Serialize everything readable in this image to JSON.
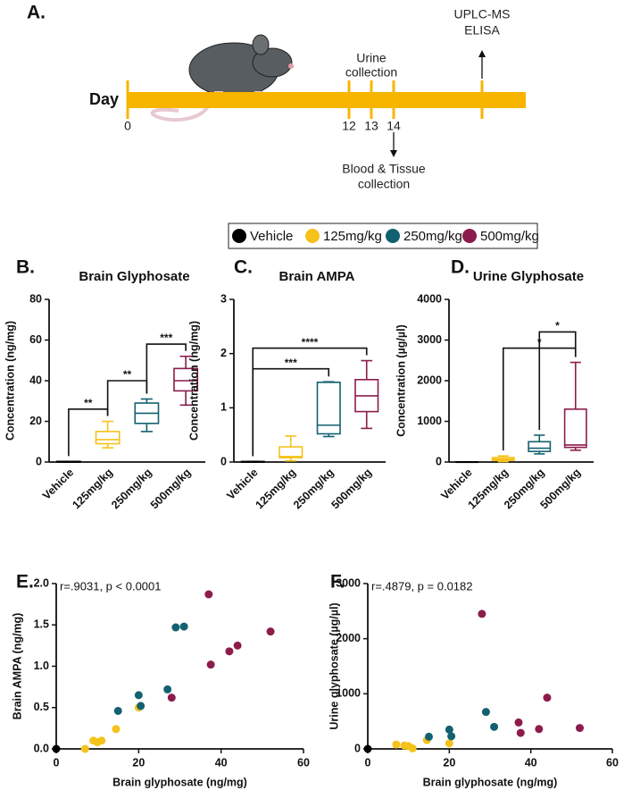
{
  "timeline": {
    "panel": "A.",
    "label": "Day",
    "days": [
      "0",
      "12",
      "13",
      "14"
    ],
    "urine": [
      "Urine",
      "collection"
    ],
    "analysis": [
      "UPLC-MS",
      "ELISA"
    ],
    "tissue": [
      "Blood & Tissue",
      "collection"
    ]
  },
  "legend": [
    {
      "name": "Vehicle",
      "color": "#000000"
    },
    {
      "name": "125mg/kg",
      "color": "#f5c21b"
    },
    {
      "name": "250mg/kg",
      "color": "#136170"
    },
    {
      "name": "500mg/kg",
      "color": "#8c1c4c"
    }
  ],
  "chart_data": [
    {
      "type": "box",
      "panel": "B.",
      "title": "Brain Glyphosate",
      "ylabel": "Concentration (ng/mg)",
      "categories": [
        "Vehicle",
        "125mg/kg",
        "250mg/kg",
        "500mg/kg"
      ],
      "colors": [
        "#000000",
        "#f5c21b",
        "#136170",
        "#8c1c4c"
      ],
      "boxes": [
        {
          "min": 0,
          "q1": 0,
          "median": 0,
          "q3": 0.3,
          "max": 0.3
        },
        {
          "min": 7,
          "q1": 9,
          "median": 11,
          "q3": 15,
          "max": 20
        },
        {
          "min": 15,
          "q1": 19,
          "median": 24,
          "q3": 29,
          "max": 31
        },
        {
          "min": 28,
          "q1": 35,
          "median": 40,
          "q3": 46,
          "max": 52
        }
      ],
      "brackets": [
        {
          "label": "**",
          "y": 26,
          "between": [
            "Vehicle",
            "125mg/kg"
          ]
        },
        {
          "label": "**",
          "y": 40,
          "between": [
            "125mg/kg",
            "250mg/kg"
          ]
        },
        {
          "label": "***",
          "y": 58,
          "between": [
            "250mg/kg",
            "500mg/kg"
          ]
        }
      ],
      "ylim": [
        0,
        80
      ],
      "yticks": [
        0,
        20,
        40,
        60,
        80
      ]
    },
    {
      "type": "box",
      "panel": "C.",
      "title": "Brain AMPA",
      "ylabel": "Concentration (ng/mg)",
      "categories": [
        "Vehicle",
        "125mg/kg",
        "250mg/kg",
        "500mg/kg"
      ],
      "colors": [
        "#000000",
        "#f5c21b",
        "#136170",
        "#8c1c4c"
      ],
      "boxes": [
        {
          "min": 0,
          "q1": 0,
          "median": 0,
          "q3": 0.01,
          "max": 0.01
        },
        {
          "min": 0.02,
          "q1": 0.08,
          "median": 0.1,
          "q3": 0.28,
          "max": 0.48
        },
        {
          "min": 0.47,
          "q1": 0.52,
          "median": 0.68,
          "q3": 1.47,
          "max": 1.48
        },
        {
          "min": 0.62,
          "q1": 0.93,
          "median": 1.22,
          "q3": 1.52,
          "max": 1.87
        }
      ],
      "brackets": [
        {
          "label": "***",
          "y": 1.72,
          "between": [
            "Vehicle",
            "250mg/kg"
          ]
        },
        {
          "label": "****",
          "y": 2.1,
          "between": [
            "Vehicle",
            "500mg/kg"
          ]
        }
      ],
      "ylim": [
        0,
        3
      ],
      "yticks": [
        0,
        1,
        2,
        3
      ]
    },
    {
      "type": "box",
      "panel": "D.",
      "title": "Urine Glyphosate",
      "ylabel": "Concentration  (µg/µl)",
      "categories": [
        "Vehicle",
        "125mg/kg",
        "250mg/kg",
        "500mg/kg"
      ],
      "colors": [
        "#000000",
        "#f5c21b",
        "#136170",
        "#8c1c4c"
      ],
      "boxes": [
        {
          "min": 0,
          "q1": 0,
          "median": 0,
          "q3": 5,
          "max": 5
        },
        {
          "min": 10,
          "q1": 40,
          "median": 70,
          "q3": 110,
          "max": 150
        },
        {
          "min": 200,
          "q1": 260,
          "median": 340,
          "q3": 500,
          "max": 660
        },
        {
          "min": 290,
          "q1": 360,
          "median": 420,
          "q3": 1300,
          "max": 2450
        }
      ],
      "brackets": [
        {
          "label": "*",
          "y": 2800,
          "between": [
            "125mg/kg",
            "500mg/kg"
          ]
        },
        {
          "label": "*",
          "y": 3200,
          "between": [
            "250mg/kg",
            "500mg/kg"
          ]
        }
      ],
      "ylim": [
        0,
        4000
      ],
      "yticks": [
        0,
        1000,
        2000,
        3000,
        4000
      ]
    },
    {
      "type": "scatter",
      "panel": "E.",
      "annotation": "r=.9031, p < 0.0001",
      "xlabel": "Brain glyphosate (ng/mg)",
      "ylabel": "Brain AMPA (ng/mg)",
      "series": [
        {
          "name": "Vehicle",
          "color": "#000000",
          "x": [
            0
          ],
          "values": [
            0
          ]
        },
        {
          "name": "125mg/kg",
          "color": "#f5c21b",
          "x": [
            7,
            9,
            10,
            11,
            14.5,
            20
          ],
          "values": [
            0,
            0.1,
            0.08,
            0.1,
            0.24,
            0.5
          ]
        },
        {
          "name": "250mg/kg",
          "color": "#136170",
          "x": [
            15,
            20,
            20.5,
            27,
            29,
            31
          ],
          "values": [
            0.46,
            0.65,
            0.52,
            0.72,
            1.47,
            1.48
          ]
        },
        {
          "name": "500mg/kg",
          "color": "#8c1c4c",
          "x": [
            28,
            37,
            37.5,
            42,
            44,
            52
          ],
          "values": [
            0.62,
            1.87,
            1.02,
            1.18,
            1.25,
            1.42
          ]
        }
      ],
      "xlim": [
        0,
        60
      ],
      "xticks": [
        0,
        20,
        40,
        60
      ],
      "ylim": [
        0,
        2
      ],
      "yticks": [
        {
          "value": 0,
          "label": "0.0"
        },
        {
          "value": 0.5,
          "label": "0.5"
        },
        {
          "value": 1,
          "label": "1.0"
        },
        {
          "value": 1.5,
          "label": "1.5"
        },
        {
          "value": 2,
          "label": "2.0"
        }
      ]
    },
    {
      "type": "scatter",
      "panel": "F.",
      "annotation": "r=.4879, p = 0.0182",
      "xlabel": "Brain glyphosate (ng/mg)",
      "ylabel": "Urine glyphosate  (µg/µl)",
      "series": [
        {
          "name": "Vehicle",
          "color": "#000000",
          "x": [
            0
          ],
          "values": [
            0
          ]
        },
        {
          "name": "125mg/kg",
          "color": "#f5c21b",
          "x": [
            7,
            9,
            10,
            11,
            14.5,
            20
          ],
          "values": [
            80,
            60,
            50,
            10,
            160,
            100
          ]
        },
        {
          "name": "250mg/kg",
          "color": "#136170",
          "x": [
            15,
            20,
            20.5,
            29,
            31
          ],
          "values": [
            220,
            350,
            230,
            670,
            400
          ]
        },
        {
          "name": "500mg/kg",
          "color": "#8c1c4c",
          "x": [
            28,
            37,
            37.5,
            42,
            44,
            52
          ],
          "values": [
            2450,
            480,
            290,
            360,
            930,
            380
          ]
        }
      ],
      "xlim": [
        0,
        60
      ],
      "xticks": [
        0,
        20,
        40,
        60
      ],
      "ylim": [
        0,
        3000
      ],
      "yticks": [
        0,
        1000,
        2000,
        3000
      ]
    }
  ]
}
